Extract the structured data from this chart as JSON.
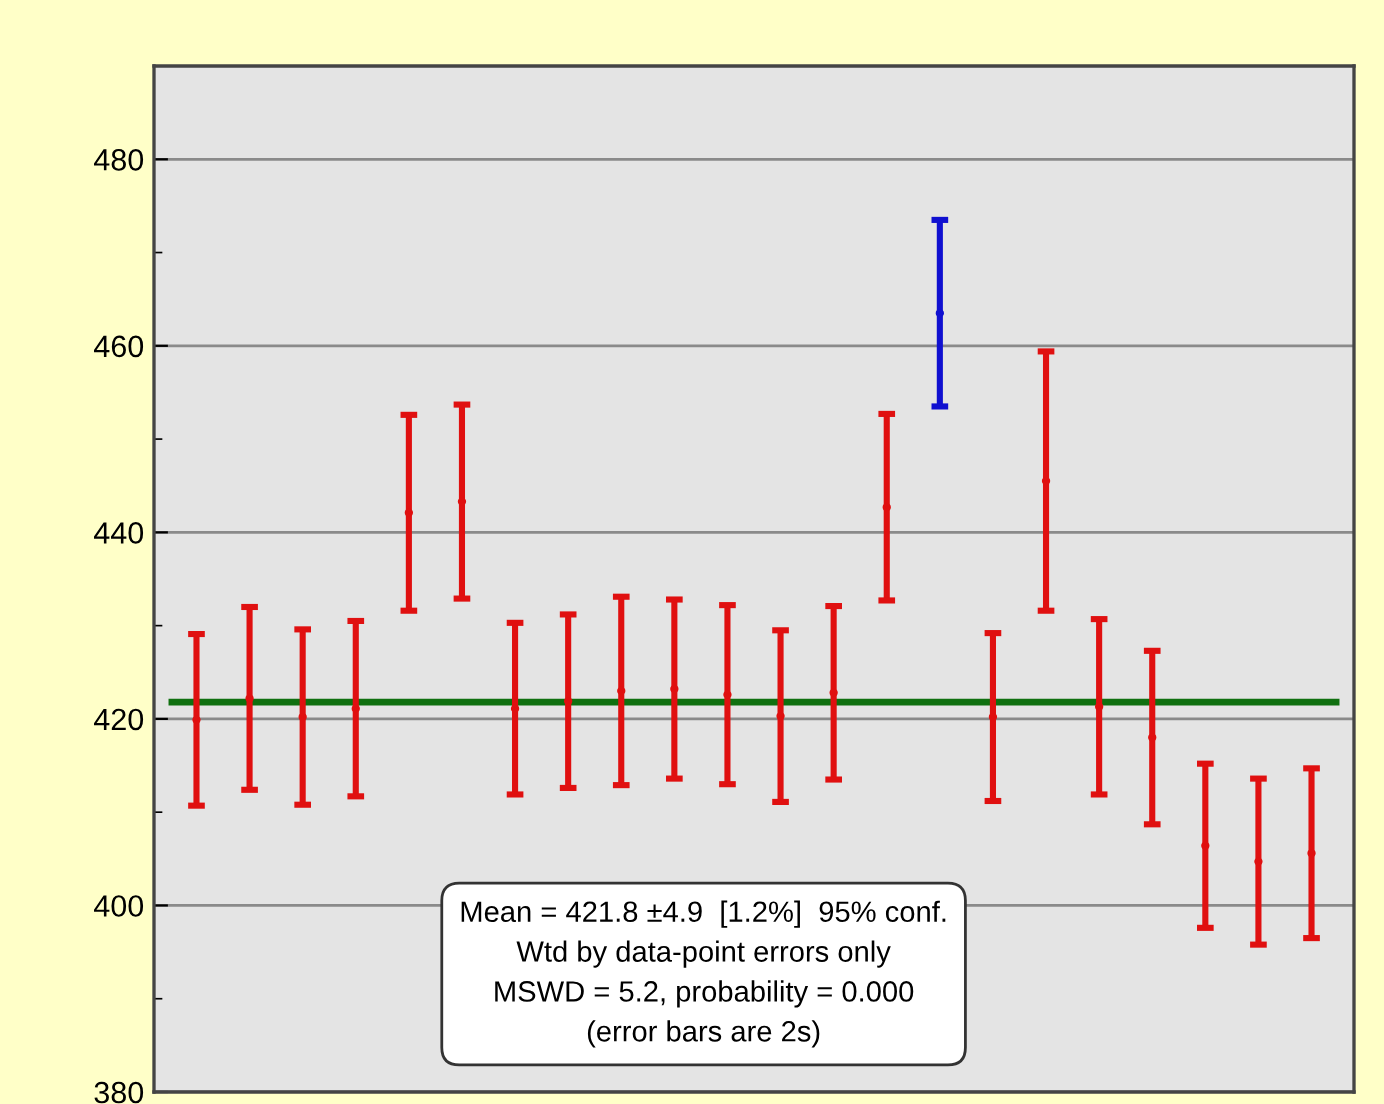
{
  "chart_data": {
    "type": "scatter",
    "marker": "none",
    "categories": [
      null,
      null,
      null,
      null,
      null,
      null,
      null,
      null,
      null,
      null,
      null,
      null,
      null,
      null,
      null,
      null,
      null,
      null,
      null,
      null,
      null,
      null
    ],
    "values": [
      419.9,
      422.2,
      420.2,
      421.1,
      442.1,
      443.3,
      421.1,
      421.9,
      423.0,
      423.2,
      422.6,
      420.3,
      422.8,
      442.7,
      463.5,
      420.2,
      445.5,
      421.3,
      418.0,
      406.4,
      404.7,
      405.6
    ],
    "errors": [
      9.2,
      9.8,
      9.4,
      9.4,
      10.5,
      10.4,
      9.2,
      9.3,
      10.1,
      9.6,
      9.6,
      9.2,
      9.3,
      10.0,
      10.0,
      9.0,
      13.9,
      9.4,
      9.3,
      8.8,
      8.9,
      9.1
    ],
    "colors": [
      "#e01010",
      "#e01010",
      "#e01010",
      "#e01010",
      "#e01010",
      "#e01010",
      "#e01010",
      "#e01010",
      "#e01010",
      "#e01010",
      "#e01010",
      "#e01010",
      "#e01010",
      "#e01010",
      "#1010d0",
      "#e01010",
      "#e01010",
      "#e01010",
      "#e01010",
      "#e01010",
      "#e01010",
      "#e01010"
    ],
    "ylim": [
      380,
      490
    ],
    "yticks": [
      380,
      {
        "value": 390,
        "label": null
      },
      400,
      {
        "value": 410,
        "label": null
      },
      420,
      {
        "value": 430,
        "label": null
      },
      440,
      {
        "value": 450,
        "label": null
      },
      460,
      {
        "value": 470,
        "label": null
      },
      480
    ],
    "grid": "y",
    "tick_labels": "y",
    "ref_lines": [
      {
        "axis": "y",
        "value": 421.8,
        "color": "#107010"
      }
    ],
    "annotations": [
      "Mean = 421.8 ±4.9  [1.2%]  95% conf.\nWtd by data-point errors only\nMSWD = 5.2, probability = 0.000\n(error bars are 2s)"
    ]
  }
}
